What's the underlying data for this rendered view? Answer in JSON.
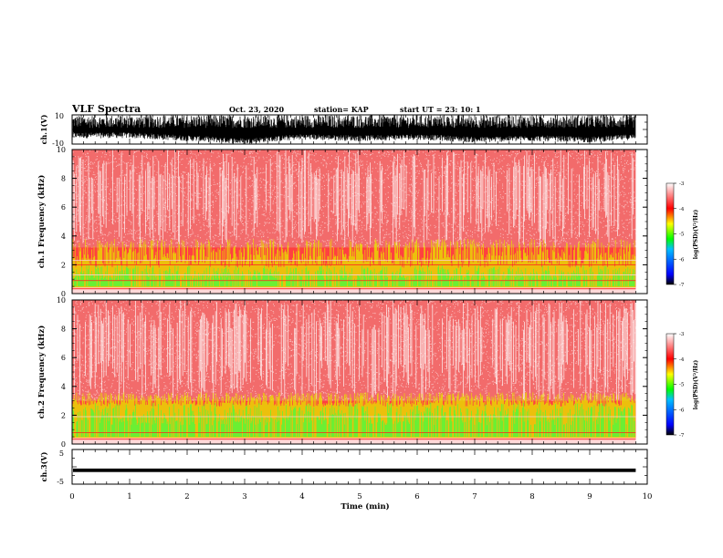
{
  "header": {
    "title": "VLF Spectra",
    "date": "Oct. 23, 2020",
    "station": "station= KAP",
    "start": "start UT =  23: 10: 1"
  },
  "colorbar": {
    "label": "log(PSD)(V²/Hz)",
    "ticks": [
      "-3",
      "-4",
      "-5",
      "-6",
      "-7"
    ],
    "colors": [
      "#000000",
      "#0000ff",
      "#00c0ff",
      "#00ff00",
      "#ffff00",
      "#ff0000",
      "#ffffff"
    ]
  },
  "chart_data": [
    {
      "panel": "waveform-ch1",
      "type": "line",
      "ylabel": "ch.1(V)",
      "yticks": [
        "10",
        "-10"
      ],
      "ylim": [
        -10,
        10
      ],
      "x": [
        0,
        1,
        2,
        3,
        4,
        5,
        6,
        7,
        8,
        9,
        9.8
      ],
      "envelope_max": [
        10,
        10,
        10,
        10,
        10,
        10,
        10,
        10,
        10,
        10,
        10
      ],
      "envelope_min": [
        -6,
        -6,
        -8,
        -10,
        -7,
        -8,
        -7,
        -9,
        -8,
        -9,
        -7
      ]
    },
    {
      "panel": "spectrogram-ch1",
      "type": "heatmap",
      "ylabel": "ch.1 Frequency (kHz)",
      "yticks": [
        "0",
        "2",
        "4",
        "6",
        "8",
        "10"
      ],
      "ylim": [
        0,
        10
      ],
      "xlim": [
        0,
        9.8
      ],
      "zlim": [
        -7,
        -3
      ],
      "band_kHz": {
        "green_yellow_top": 3.2,
        "green_core_top": 1.8
      },
      "horizontal_lines_kHz": [
        0.4,
        0.9,
        1.3,
        2.0,
        2.3
      ]
    },
    {
      "panel": "spectrogram-ch2",
      "type": "heatmap",
      "ylabel": "ch.2 Frequency (kHz)",
      "yticks": [
        "0",
        "2",
        "4",
        "6",
        "8",
        "10"
      ],
      "ylim": [
        0,
        10
      ],
      "xlim": [
        0,
        9.8
      ],
      "zlim": [
        -7,
        -3
      ],
      "band_kHz": {
        "green_yellow_top": 3.0,
        "green_core_top": 2.6
      },
      "horizontal_lines_kHz": [
        0.4,
        0.8,
        1.9
      ]
    },
    {
      "panel": "waveform-ch3",
      "type": "line",
      "ylabel": "ch.3(V)",
      "yticks": [
        "5",
        "-5"
      ],
      "ylim": [
        -5,
        5
      ],
      "x": [
        0,
        9.8
      ],
      "envelope_max": [
        -0.5,
        -0.5
      ],
      "envelope_min": [
        -1.5,
        -1.5
      ]
    }
  ],
  "xaxis": {
    "label": "Time (min)",
    "ticks": [
      "0",
      "1",
      "2",
      "3",
      "4",
      "5",
      "6",
      "7",
      "8",
      "9",
      "10"
    ],
    "xlim": [
      0,
      10
    ]
  }
}
